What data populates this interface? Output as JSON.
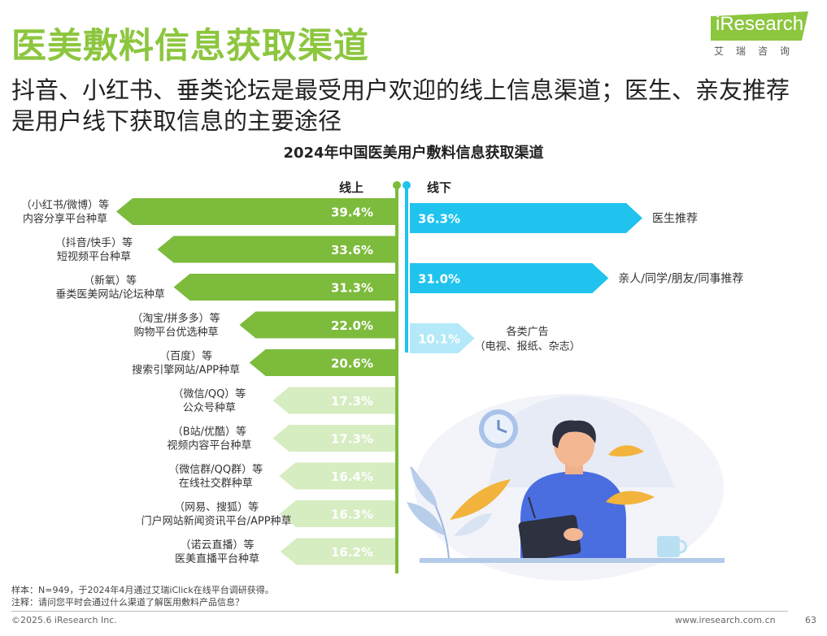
{
  "header": {
    "title": "医美敷料信息获取渠道",
    "subtitle": "抖音、小红书、垂类论坛是最受用户欢迎的线上信息渠道；医生、亲友推荐是用户线下获取信息的主要途径",
    "logo_text": "iResearch",
    "logo_subtext": "艾瑞咨询"
  },
  "chart_data": {
    "type": "bar",
    "title": "2024年中国医美用户敷料信息获取渠道",
    "unit": "%",
    "online": {
      "label": "线上",
      "color_dark": "#7dbb3c",
      "color_light": "#d6ecc1",
      "items": [
        {
          "line1": "（小红书/微博）等",
          "line2": "内容分享平台种草",
          "value": 39.4,
          "label": "39.4%",
          "tone": "dark"
        },
        {
          "line1": "（抖音/快手）等",
          "line2": "短视频平台种草",
          "value": 33.6,
          "label": "33.6%",
          "tone": "dark"
        },
        {
          "line1": "（新氧）等",
          "line2": "垂类医美网站/论坛种草",
          "value": 31.3,
          "label": "31.3%",
          "tone": "dark"
        },
        {
          "line1": "（淘宝/拼多多）等",
          "line2": "购物平台优选种草",
          "value": 22.0,
          "label": "22.0%",
          "tone": "dark"
        },
        {
          "line1": "（百度）等",
          "line2": "搜索引擎网站/APP种草",
          "value": 20.6,
          "label": "20.6%",
          "tone": "dark"
        },
        {
          "line1": "（微信/QQ）等",
          "line2": "公众号种草",
          "value": 17.3,
          "label": "17.3%",
          "tone": "light"
        },
        {
          "line1": "（B站/优酷）等",
          "line2": "视频内容平台种草",
          "value": 17.3,
          "label": "17.3%",
          "tone": "light"
        },
        {
          "line1": "（微信群/QQ群）等",
          "line2": "在线社交群种草",
          "value": 16.4,
          "label": "16.4%",
          "tone": "light"
        },
        {
          "line1": "（网易、搜狐）等",
          "line2": "门户网站新闻资讯平台/APP种草",
          "value": 16.3,
          "label": "16.3%",
          "tone": "light"
        },
        {
          "line1": "（诺云直播）等",
          "line2": "医美直播平台种草",
          "value": 16.2,
          "label": "16.2%",
          "tone": "light"
        }
      ]
    },
    "offline": {
      "label": "线下",
      "color_dark": "#1fc3ee",
      "color_light": "#b3e9f8",
      "items": [
        {
          "line1": "医生推荐",
          "line2": "",
          "value": 36.3,
          "label": "36.3%",
          "tone": "dark"
        },
        {
          "line1": "亲人/同学/朋友/同事推荐",
          "line2": "",
          "value": 31.0,
          "label": "31.0%",
          "tone": "dark"
        },
        {
          "line1": "各类广告",
          "line2": "（电视、报纸、杂志）",
          "value": 10.1,
          "label": "10.1%",
          "tone": "light"
        }
      ]
    }
  },
  "footer": {
    "sample_note": "样本：N=949，于2024年4月通过艾瑞iClick在线平台调研获得。",
    "question_note": "注释：请问您平时会通过什么渠道了解医用敷料产品信息？",
    "copyright": "©2025.6 iResearch Inc.",
    "website": "www.iresearch.com.cn",
    "page_number": "63"
  }
}
